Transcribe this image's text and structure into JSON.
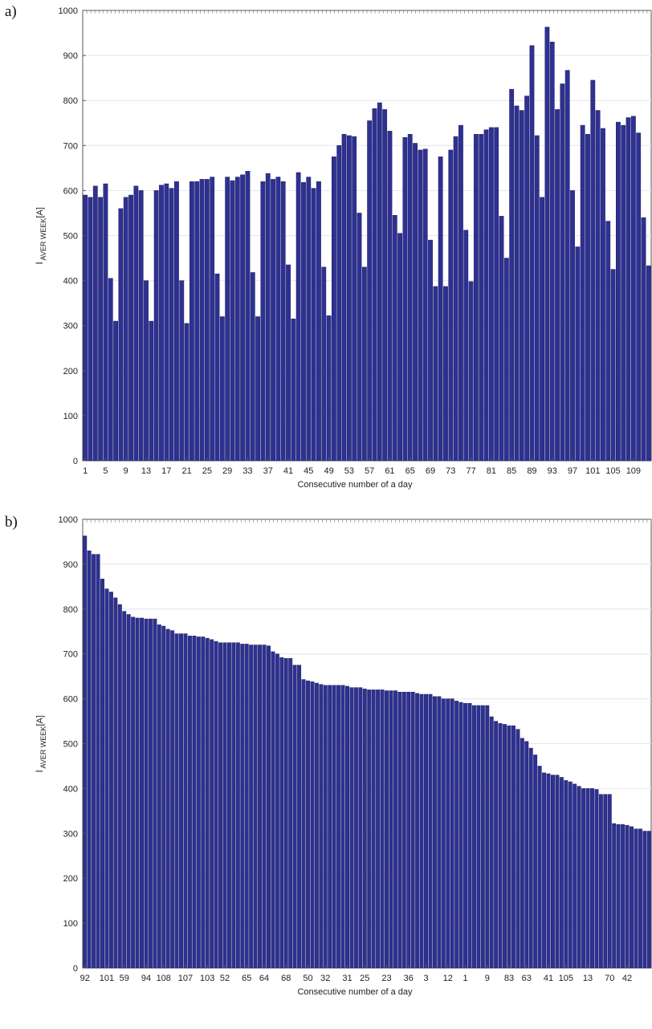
{
  "panel_labels": [
    "a)",
    "b)"
  ],
  "chart_data": [
    {
      "type": "bar",
      "ylabel_main": "I",
      "ylabel_sub": "AVER WEEK",
      "ylabel_unit": "[A]",
      "xlabel": "Consecutive number of a day",
      "ylim": [
        0,
        1000
      ],
      "yticks": [
        0,
        100,
        200,
        300,
        400,
        500,
        600,
        700,
        800,
        900,
        1000
      ],
      "x": [
        1,
        2,
        3,
        4,
        5,
        6,
        7,
        8,
        9,
        10,
        11,
        12,
        13,
        14,
        15,
        16,
        17,
        18,
        19,
        20,
        21,
        22,
        23,
        24,
        25,
        26,
        27,
        28,
        29,
        30,
        31,
        32,
        33,
        34,
        35,
        36,
        37,
        38,
        39,
        40,
        41,
        42,
        43,
        44,
        45,
        46,
        47,
        48,
        49,
        50,
        51,
        52,
        53,
        54,
        55,
        56,
        57,
        58,
        59,
        60,
        61,
        62,
        63,
        64,
        65,
        66,
        67,
        68,
        69,
        70,
        71,
        72,
        73,
        74,
        75,
        76,
        77,
        78,
        79,
        80,
        81,
        82,
        83,
        84,
        85,
        86,
        87,
        88,
        89,
        90,
        91,
        92,
        93,
        94,
        95,
        96,
        97,
        98,
        99,
        100,
        101,
        102,
        103,
        104,
        105,
        106,
        107,
        108,
        109,
        110,
        111,
        112
      ],
      "xtick_labels": [
        "1",
        "5",
        "9",
        "13",
        "17",
        "21",
        "25",
        "29",
        "33",
        "37",
        "41",
        "45",
        "49",
        "53",
        "57",
        "61",
        "65",
        "69",
        "73",
        "77",
        "81",
        "85",
        "89",
        "93",
        "97",
        "101",
        "105",
        "109"
      ],
      "values": [
        590,
        585,
        610,
        585,
        615,
        405,
        310,
        560,
        585,
        590,
        610,
        600,
        400,
        310,
        600,
        612,
        615,
        605,
        620,
        400,
        305,
        620,
        620,
        625,
        625,
        630,
        415,
        320,
        630,
        622,
        630,
        635,
        643,
        418,
        320,
        620,
        638,
        625,
        630,
        620,
        435,
        315,
        640,
        618,
        630,
        605,
        620,
        430,
        322,
        675,
        700,
        725,
        722,
        720,
        550,
        430,
        755,
        782,
        795,
        780,
        732,
        545,
        505,
        718,
        725,
        705,
        690,
        692,
        490,
        387,
        675,
        387,
        690,
        720,
        745,
        512,
        398,
        725,
        725,
        735,
        740,
        740,
        543,
        450,
        825,
        788,
        778,
        810,
        922,
        722,
        585,
        963,
        930,
        780,
        837,
        867,
        600,
        475,
        745,
        725,
        845,
        778,
        738,
        532,
        425,
        752,
        745,
        762,
        765,
        728,
        540,
        433
      ],
      "bar_color": "#2e3191"
    },
    {
      "type": "bar",
      "ylabel_main": "I",
      "ylabel_sub": "AVER WEEK",
      "ylabel_unit": "[A]",
      "xlabel": "Consecutive number of a day",
      "ylim": [
        0,
        1000
      ],
      "yticks": [
        0,
        100,
        200,
        300,
        400,
        500,
        600,
        700,
        800,
        900,
        1000
      ],
      "xtick_labels": [
        "92",
        "101",
        "59",
        "94",
        "108",
        "107",
        "103",
        "52",
        "65",
        "64",
        "68",
        "50",
        "32",
        "31",
        "25",
        "23",
        "36",
        "3",
        "12",
        "1",
        "9",
        "83",
        "63",
        "41",
        "105",
        "13",
        "70",
        "42"
      ],
      "values": [
        963,
        930,
        922,
        922,
        867,
        845,
        838,
        825,
        810,
        795,
        788,
        782,
        780,
        780,
        778,
        778,
        778,
        765,
        762,
        755,
        752,
        745,
        745,
        745,
        740,
        740,
        738,
        738,
        735,
        732,
        728,
        725,
        725,
        725,
        725,
        725,
        722,
        722,
        720,
        720,
        720,
        720,
        718,
        705,
        700,
        692,
        690,
        690,
        675,
        675,
        643,
        640,
        638,
        635,
        632,
        630,
        630,
        630,
        630,
        630,
        628,
        625,
        625,
        625,
        622,
        620,
        620,
        620,
        620,
        618,
        618,
        618,
        615,
        615,
        615,
        615,
        612,
        610,
        610,
        610,
        605,
        605,
        600,
        600,
        600,
        595,
        592,
        590,
        590,
        585,
        585,
        585,
        585,
        560,
        550,
        545,
        543,
        540,
        540,
        532,
        512,
        505,
        490,
        475,
        450,
        435,
        433,
        430,
        430,
        425,
        418,
        415,
        410,
        405,
        400,
        400,
        400,
        398,
        387,
        387,
        387,
        322,
        320,
        320,
        318,
        315,
        310,
        310,
        305,
        305
      ],
      "bar_color": "#2e3191"
    }
  ]
}
